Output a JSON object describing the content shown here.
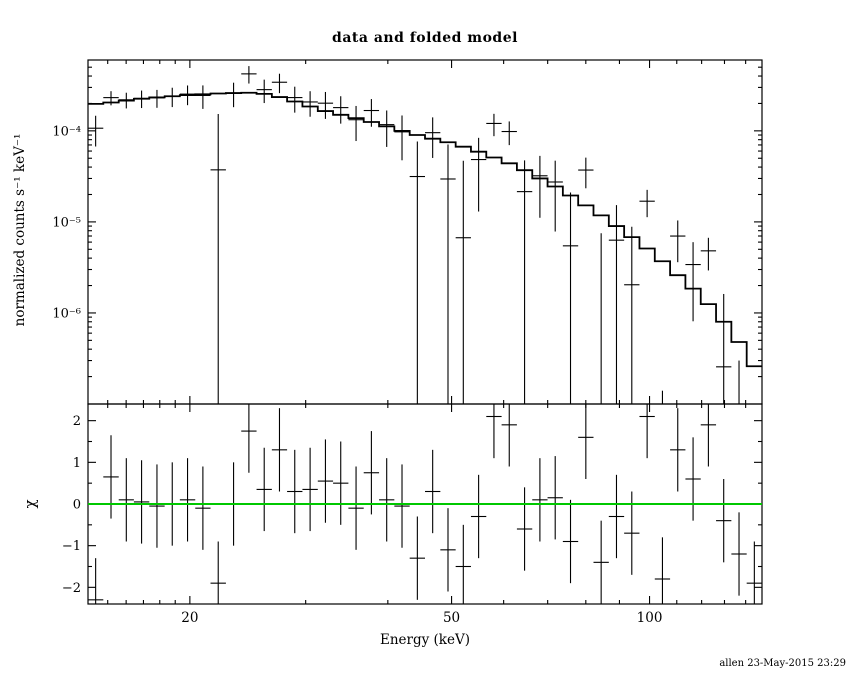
{
  "title": "data and folded model",
  "signature": "allen 23-May-2015 23:29",
  "colors": {
    "foreground": "#000000",
    "background": "#ffffff",
    "model_line": "#000000",
    "data_cross": "#000000",
    "zero_line": "#00c800"
  },
  "chart_data": {
    "type": "scatter",
    "title": "data and folded model",
    "xlabel": "Energy (keV)",
    "xscale": "log",
    "xlim": [
      14.0,
      148.25
    ],
    "xticks": {
      "major_values": [
        20,
        50,
        100
      ],
      "major_labels": [
        "20",
        "50",
        "100"
      ],
      "minor_values": [
        15,
        16,
        17,
        18,
        19,
        30,
        40,
        60,
        70,
        80,
        90,
        110,
        120,
        130,
        140
      ]
    },
    "bin_edges": [
      14.0,
      14.77,
      15.59,
      16.44,
      17.35,
      18.31,
      19.31,
      20.38,
      21.5,
      22.69,
      23.94,
      25.26,
      26.65,
      28.11,
      29.66,
      31.3,
      33.02,
      34.84,
      36.76,
      38.79,
      40.92,
      43.18,
      45.56,
      48.07,
      50.72,
      53.51,
      56.46,
      59.57,
      62.85,
      66.32,
      69.97,
      73.82,
      77.89,
      82.18,
      86.71,
      91.49,
      96.53,
      101.85,
      107.46,
      113.38,
      119.63,
      126.22,
      133.17,
      140.51,
      148.25
    ],
    "panels": [
      {
        "name": "spectrum",
        "ylabel": "normalized counts s⁻¹ keV⁻¹",
        "yscale": "log",
        "ylim": [
          1e-07,
          0.0006
        ],
        "yticks": {
          "major_values": [
            0.0001,
            1e-05,
            1e-06
          ],
          "major_labels": [
            "10⁻⁴",
            "10⁻⁵",
            "10⁻⁶"
          ],
          "minor_decades": [
            -7,
            -6,
            -5,
            -4
          ]
        },
        "model": [
          0.000198,
          0.000205,
          0.000215,
          0.000225,
          0.000233,
          0.00024,
          0.000247,
          0.000252,
          0.000257,
          0.00026,
          0.000262,
          0.000255,
          0.000235,
          0.00021,
          0.000185,
          0.000165,
          0.00015,
          0.000138,
          0.000125,
          0.000112,
          0.0001,
          9e-05,
          8.2e-05,
          7.5e-05,
          6.7e-05,
          5.9e-05,
          5.1e-05,
          4.4e-05,
          3.7e-05,
          3e-05,
          2.45e-05,
          1.95e-05,
          1.52e-05,
          1.18e-05,
          9e-06,
          6.8e-06,
          5.1e-06,
          3.7e-06,
          2.6e-06,
          1.85e-06,
          1.25e-06,
          8e-07,
          4.8e-07,
          2.6e-07
        ],
        "data": [
          0.0001069,
          0.0002317,
          0.0002193,
          0.0002275,
          0.0002304,
          0.00024,
          0.0002532,
          0.0002449,
          3.73e-05,
          0.00026,
          0.0004225,
          0.0002836,
          0.0003419,
          0.000232,
          0.0002077,
          0.0002013,
          0.00018,
          0.0001325,
          0.0001672,
          0.000117,
          9.75e-05,
          3.15e-05,
          9.55e-05,
          2.96e-05,
          6.7e-06,
          4.84e-05,
          0.0001206,
          9.83e-05,
          2.15e-05,
          3.21e-05,
          2.744e-05,
          5.46e-06,
          3.71e-05,
          -3.1e-06,
          6.3e-06,
          2.04e-06,
          1.688e-05,
          -4.3e-06,
          6.99e-06,
          3.4e-06,
          4.81e-06,
          2.56e-07,
          -6.1e-07,
          -8.3e-07
        ],
        "error": [
          3.96e-05,
          4.1e-05,
          4.3e-05,
          4.95e-05,
          5.13e-05,
          5.76e-05,
          6.18e-05,
          7.06e-05,
          0.0001157,
          7.8e-05,
          9.17e-05,
          8.16e-05,
          8.23e-05,
          7.35e-05,
          6.48e-05,
          6.6e-05,
          6e-05,
          5.52e-05,
          5.63e-05,
          5.04e-05,
          5e-05,
          4.5e-05,
          4.51e-05,
          4.13e-05,
          4.02e-05,
          3.54e-05,
          3.32e-05,
          2.86e-05,
          2.59e-05,
          2.1e-05,
          1.96e-05,
          1.56e-05,
          1.37e-05,
          1.06e-05,
          9e-06,
          6.8e-06,
          5.61e-06,
          4.44e-06,
          3.38e-06,
          2.59e-06,
          1.88e-06,
          1.36e-06,
          9.1e-07,
          5.7e-07
        ]
      },
      {
        "name": "residuals",
        "ylabel": "χ",
        "yscale": "linear",
        "ylim": [
          -2.4,
          2.4
        ],
        "yticks": {
          "major_values": [
            -2,
            -1,
            0,
            1,
            2
          ],
          "major_labels": [
            "−2",
            "−1",
            "0",
            "1",
            "2"
          ],
          "minor_values": [
            -1.5,
            -0.5,
            0.5,
            1.5
          ]
        },
        "chi": [
          -2.3,
          0.65,
          0.1,
          0.05,
          -0.05,
          0.0,
          0.1,
          -0.1,
          -1.9,
          0.0,
          1.75,
          0.35,
          1.3,
          0.3,
          0.35,
          0.55,
          0.5,
          -0.1,
          0.75,
          0.1,
          -0.05,
          -1.3,
          0.3,
          -1.1,
          -1.5,
          -0.3,
          2.1,
          1.9,
          -0.6,
          0.1,
          0.15,
          -0.9,
          1.6,
          -1.4,
          -0.3,
          -0.7,
          2.1,
          -1.8,
          1.3,
          0.6,
          1.9,
          -0.4,
          -1.2,
          -1.9
        ],
        "chi_error": 1,
        "zero_line": 0
      }
    ]
  }
}
